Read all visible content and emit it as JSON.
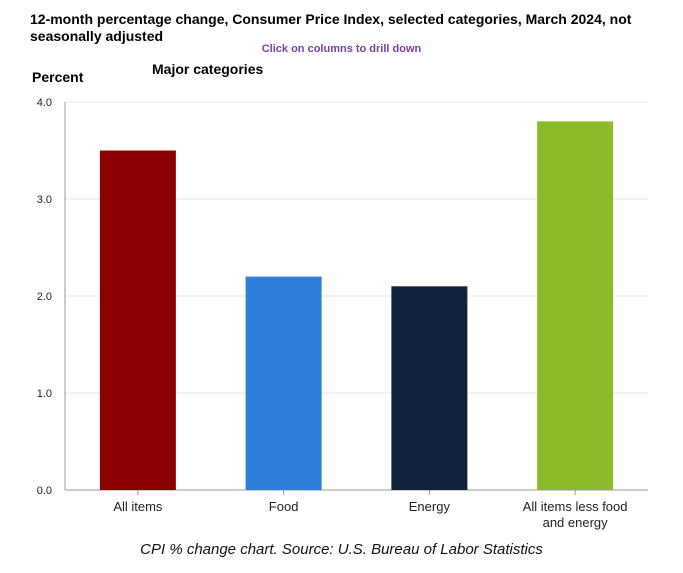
{
  "title": "12-month percentage change, Consumer Price Index, selected categories, March 2024, not seasonally adjusted",
  "drill_hint": "Click on columns to drill down",
  "caption": "CPI % change chart. Source: U.S. Bureau of Labor Statistics",
  "chart_data": {
    "type": "bar",
    "title": "12-month percentage change, Consumer Price Index, selected categories, March 2024, not seasonally adjusted",
    "subtitle": "Major categories",
    "xlabel": "",
    "ylabel": "Percent",
    "categories": [
      "All items",
      "Food",
      "Energy",
      "All items less food and energy"
    ],
    "category_lines": [
      [
        "All items"
      ],
      [
        "Food"
      ],
      [
        "Energy"
      ],
      [
        "All items less food",
        "and energy"
      ]
    ],
    "values": [
      3.5,
      2.2,
      2.1,
      3.8
    ],
    "colors": [
      "#8b0000",
      "#2f7ed8",
      "#10233d",
      "#8bbb2a"
    ],
    "ylim": [
      0,
      4
    ],
    "yticks": [
      "0.0",
      "1.0",
      "2.0",
      "3.0",
      "4.0"
    ],
    "grid": true,
    "legend": "none"
  }
}
